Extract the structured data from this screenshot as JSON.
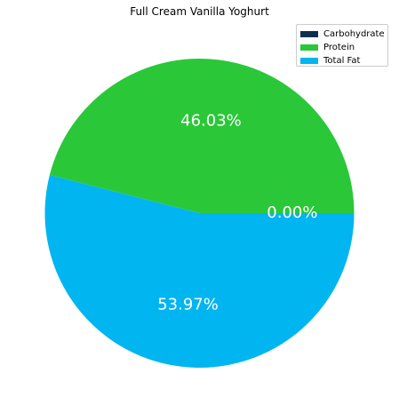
{
  "chart_data": {
    "type": "pie",
    "title": "Full Cream Vanilla Yoghurt",
    "categories": [
      "Carbohydrate",
      "Protein",
      "Total Fat"
    ],
    "values": [
      0.0,
      46.03,
      53.97
    ],
    "value_labels": [
      "0.00%",
      "46.03%",
      "53.97%"
    ],
    "colors": [
      "#0b2f4f",
      "#2ac838",
      "#00b5f0"
    ],
    "start_angle_deg": 0,
    "direction": "counterclockwise",
    "legend": {
      "placement": "top-right",
      "entries": [
        "Carbohydrate",
        "Protein",
        "Total Fat"
      ]
    },
    "label_color": "#ffffff"
  }
}
